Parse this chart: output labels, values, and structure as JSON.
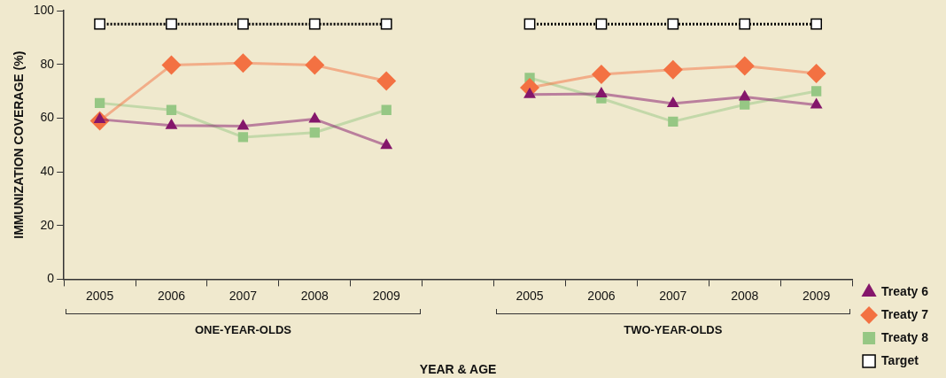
{
  "chart_data": {
    "type": "line",
    "ylabel": "IMMUNIZATION COVERAGE (%)",
    "xlabel": "YEAR & AGE",
    "categories": [
      "2005",
      "2006",
      "2007",
      "2008",
      "2009",
      null,
      "2005",
      "2006",
      "2007",
      "2008",
      "2009"
    ],
    "annotations": [
      "ONE-YEAR-OLDS",
      "TWO-YEAR-OLDS"
    ],
    "ylim": [
      0,
      100
    ],
    "yticks": [
      0,
      20,
      40,
      60,
      80,
      100
    ],
    "grid": false,
    "legend": "right",
    "series": [
      {
        "name": "Treaty 6",
        "color": "#84166b",
        "marker": "triangle",
        "line_style": "solid",
        "values": [
          59.5,
          57.2,
          57,
          59.6,
          49.8,
          null,
          68.8,
          69,
          65.4,
          67.9,
          64.9
        ]
      },
      {
        "name": "Treaty 7",
        "color": "#f37142",
        "marker": "diamond",
        "line_style": "solid",
        "values": [
          59,
          79.7,
          80.5,
          79.7,
          73.8,
          null,
          71.3,
          76.3,
          78,
          79.4,
          76.6
        ]
      },
      {
        "name": "Treaty 8",
        "color": "#96c784",
        "marker": "square",
        "line_style": "solid",
        "values": [
          65.6,
          63,
          52.9,
          54.6,
          63,
          null,
          75,
          67.3,
          58.7,
          65,
          70
        ]
      },
      {
        "name": "Target",
        "color": "#000000",
        "marker": "square",
        "line_style": "dotted",
        "values": [
          95,
          95,
          95,
          95,
          95,
          null,
          95,
          95,
          95,
          95,
          95
        ]
      }
    ]
  }
}
